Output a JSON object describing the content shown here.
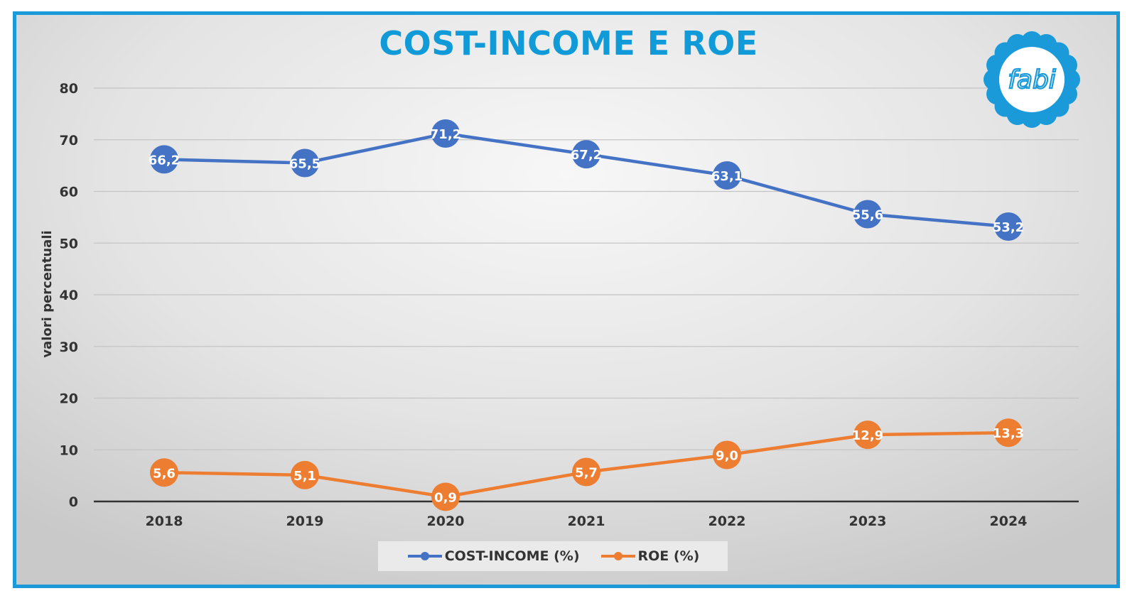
{
  "chart_data": {
    "type": "line",
    "title": "COST-INCOME E ROE",
    "ylabel": "valori percentuali",
    "xlabel": "",
    "categories": [
      "2018",
      "2019",
      "2020",
      "2021",
      "2022",
      "2023",
      "2024"
    ],
    "ylim": [
      0,
      80
    ],
    "yticks": [
      0,
      10,
      20,
      30,
      40,
      50,
      60,
      70,
      80
    ],
    "ytick_labels": [
      "0",
      "10",
      "20",
      "30",
      "40",
      "50",
      "60",
      "70",
      "80"
    ],
    "grid": true,
    "legend_position": "bottom",
    "series": [
      {
        "name": "COST-INCOME (%)",
        "color": "#4472c4",
        "values": [
          66.2,
          65.5,
          71.2,
          67.2,
          63.1,
          55.6,
          53.2
        ],
        "labels": [
          "66,2",
          "65,5",
          "71,2",
          "67,2",
          "63,1",
          "55,6",
          "53,2"
        ]
      },
      {
        "name": "ROE (%)",
        "color": "#ed7d31",
        "values": [
          5.6,
          5.1,
          0.9,
          5.7,
          9.0,
          12.9,
          13.3
        ],
        "labels": [
          "5,6",
          "5,1",
          "0,9",
          "5,7",
          "9,0",
          "12,9",
          "13,3"
        ]
      }
    ]
  },
  "logo": {
    "text": "fabi",
    "icon": "flower-logo-icon",
    "color": "#1a9ad9"
  },
  "colors": {
    "frame": "#1a9ad9",
    "title": "#109ad8"
  }
}
